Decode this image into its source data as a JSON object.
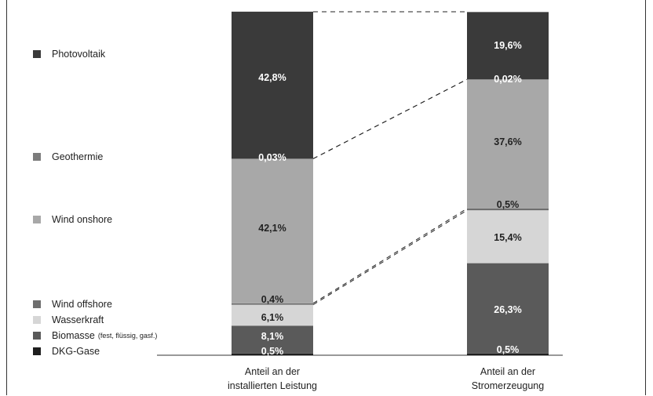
{
  "chart_data": {
    "type": "stacked-bar",
    "categories": [
      "Anteil an der installierten Leistung",
      "Anteil an der Stromerzeugung"
    ],
    "category_labels": [
      [
        "Anteil an der",
        "installierten Leistung"
      ],
      [
        "Anteil an der",
        "Stromerzeugung"
      ]
    ],
    "series": [
      {
        "name": "DKG-Gase",
        "note": "",
        "color": "#1e1e1e",
        "text_color": "#ffffff",
        "values": [
          0.5,
          0.5
        ],
        "labels": [
          "0,5%",
          "0,5%"
        ]
      },
      {
        "name": "Biomasse",
        "note": "(fest, flüssig, gasf.)",
        "color": "#5a5a5a",
        "text_color": "#ffffff",
        "values": [
          8.1,
          26.3
        ],
        "labels": [
          "8,1%",
          "26,3%"
        ]
      },
      {
        "name": "Wasserkraft",
        "note": "",
        "color": "#d6d6d6",
        "text_color": "#222222",
        "values": [
          6.1,
          15.4
        ],
        "labels": [
          "6,1%",
          "15,4%"
        ]
      },
      {
        "name": "Wind offshore",
        "note": "",
        "color": "#6e6e6e",
        "text_color": "#222222",
        "values": [
          0.4,
          0.5
        ],
        "labels": [
          "0,4%",
          "0,5%"
        ]
      },
      {
        "name": "Wind onshore",
        "note": "",
        "color": "#a8a8a8",
        "text_color": "#222222",
        "values": [
          42.1,
          37.6
        ],
        "labels": [
          "42,1%",
          "37,6%"
        ]
      },
      {
        "name": "Geothermie",
        "note": "",
        "color": "#7c7c7c",
        "text_color": "#ffffff",
        "values": [
          0.03,
          0.02
        ],
        "labels": [
          "0,03%",
          "0,02%"
        ]
      },
      {
        "name": "Photovoltaik",
        "note": "",
        "color": "#3a3a3a",
        "text_color": "#ffffff",
        "values": [
          42.8,
          19.6
        ],
        "labels": [
          "42,8%",
          "19,6%"
        ]
      }
    ],
    "ylim": [
      0,
      100
    ],
    "legend_position": "left",
    "connectors": "dashed lines between corresponding segment boundaries"
  }
}
